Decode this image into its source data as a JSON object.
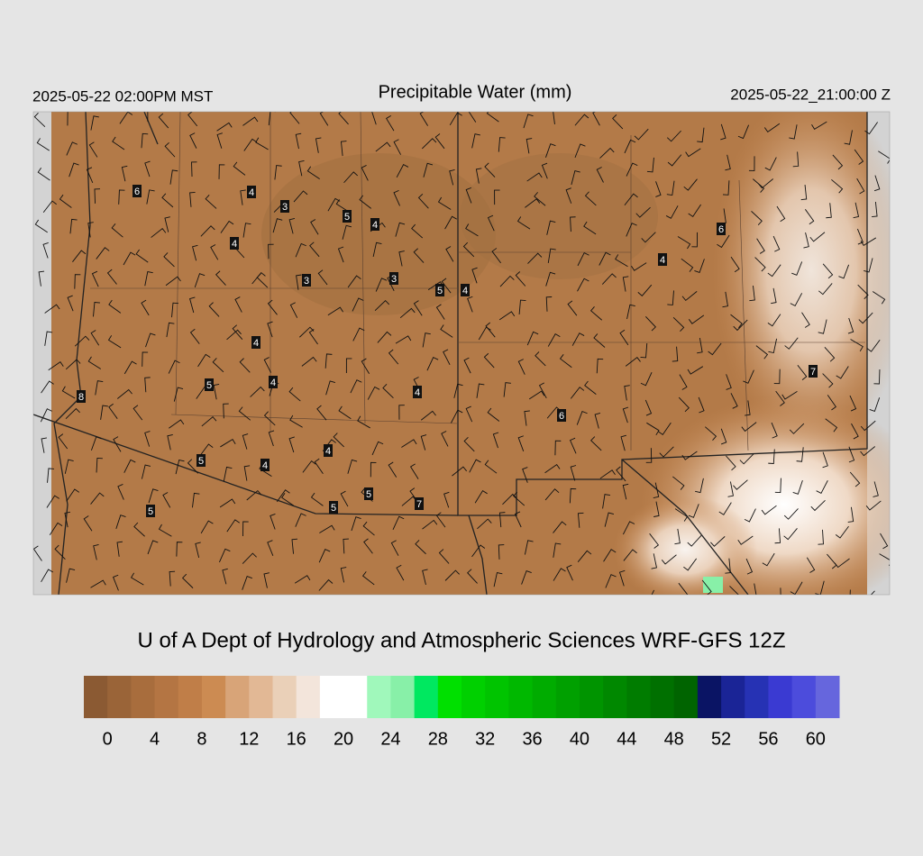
{
  "header": {
    "title": "Precipitable Water (mm)",
    "valid_local": "2025-05-22 02:00PM MST",
    "valid_utc": "2025-05-22_21:00:00 Z"
  },
  "credit": "U of A Dept of Hydrology and Atmospheric Sciences WRF-GFS 12Z",
  "stations": [
    6,
    4,
    3,
    5,
    4,
    4,
    6,
    4,
    3,
    3,
    5,
    4,
    4,
    4,
    5,
    4,
    8,
    6,
    7,
    4,
    5,
    4,
    5,
    5,
    7,
    5
  ],
  "colorbar": {
    "colors": [
      "#8b5a33",
      "#9a6438",
      "#a86d3d",
      "#b47543",
      "#c07e48",
      "#cc8b52",
      "#d8a478",
      "#e2b895",
      "#ead0b8",
      "#f3e5db",
      "#ffffff",
      "#ffffff",
      "#a0f8bb",
      "#88f0a8",
      "#00e860",
      "#00e000",
      "#00d000",
      "#00c400",
      "#00b800",
      "#00ac00",
      "#00a000",
      "#009400",
      "#008800",
      "#007c00",
      "#007000",
      "#006400",
      "#0a1464",
      "#1a2496",
      "#2632b4",
      "#3a3ad2",
      "#4c4cdc",
      "#6666dd"
    ],
    "ticks": [
      0,
      4,
      8,
      12,
      16,
      20,
      24,
      28,
      32,
      36,
      40,
      44,
      48,
      52,
      56,
      60
    ]
  }
}
